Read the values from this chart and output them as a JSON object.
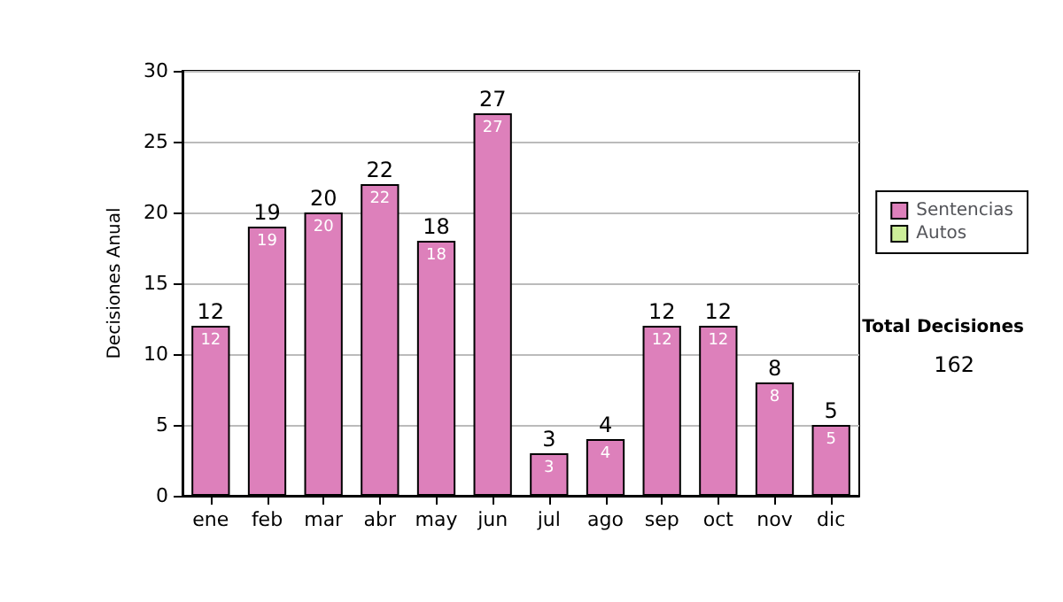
{
  "chart_data": {
    "type": "bar",
    "ylabel": "Decisiones Anual",
    "categories": [
      "ene",
      "feb",
      "mar",
      "abr",
      "may",
      "jun",
      "jul",
      "ago",
      "sep",
      "oct",
      "nov",
      "dic"
    ],
    "series": [
      {
        "name": "Sentencias",
        "color": "#dd80bb",
        "values": [
          12,
          19,
          20,
          22,
          18,
          27,
          3,
          4,
          12,
          12,
          8,
          5
        ],
        "value_labels": [
          "12",
          "19",
          "20",
          "22",
          "18",
          "27",
          "3",
          "4",
          "12",
          "12",
          "8",
          "5"
        ]
      },
      {
        "name": "Autos",
        "color": "#ccee99",
        "values": [
          null,
          null,
          null,
          null,
          null,
          null,
          null,
          null,
          null,
          null,
          null,
          null
        ]
      }
    ],
    "stacked": true,
    "totals": [
      "12",
      "19",
      "20",
      "22",
      "18",
      "27",
      "3",
      "4",
      "12",
      "12",
      "8",
      "5"
    ],
    "ylim": [
      0,
      30
    ],
    "yticks": [
      0,
      5,
      10,
      15,
      20,
      25,
      30
    ],
    "grid": "y",
    "legend": "right",
    "annotations": [
      "Total Decisiones",
      "162"
    ]
  }
}
